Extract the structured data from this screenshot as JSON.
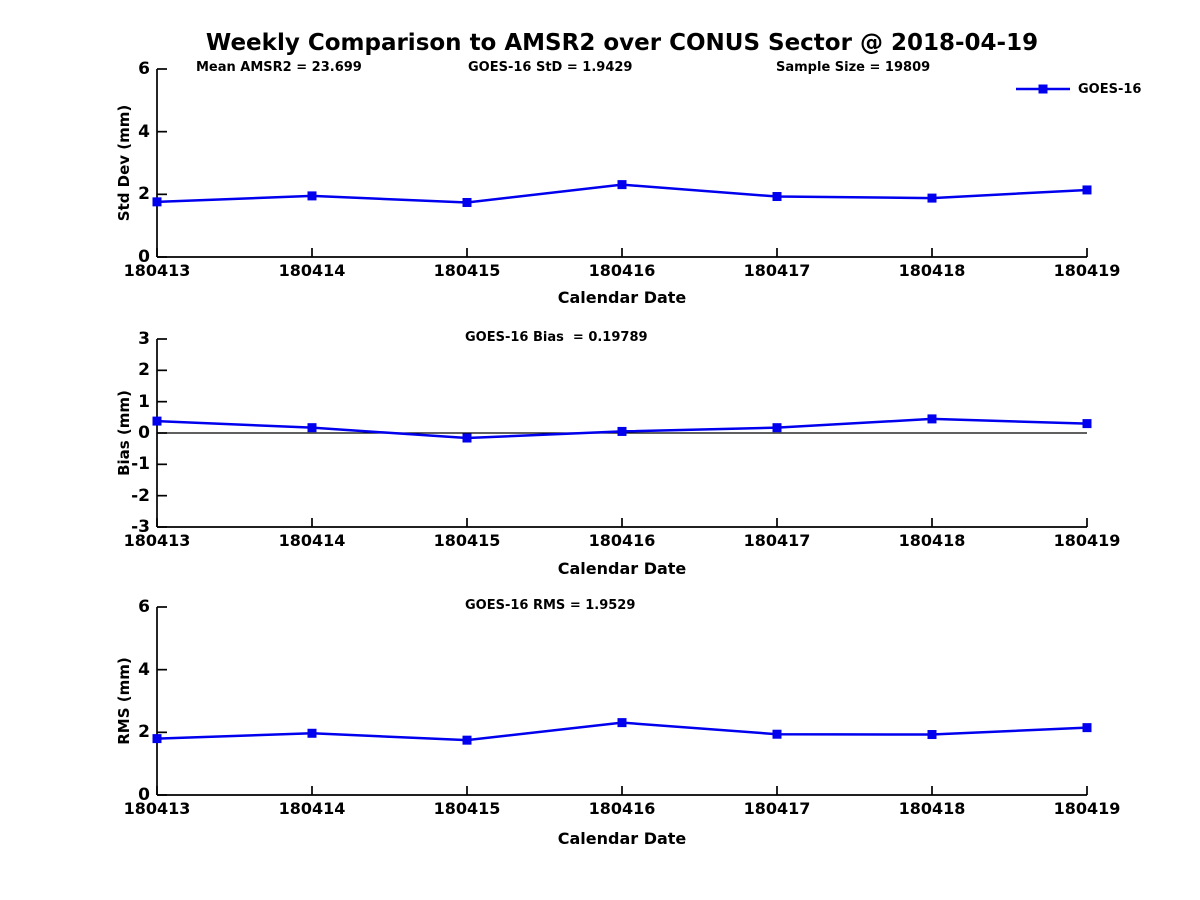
{
  "title": "Weekly Comparison to AMSR2 over CONUS Sector @ 2018-04-19",
  "annotations": {
    "mean_amsr2": "Mean AMSR2 = 23.699",
    "std": "GOES-16 StD = 1.9429",
    "sample_size": "Sample Size = 19809",
    "bias": "GOES-16 Bias  = 0.19789",
    "rms": "GOES-16 RMS = 1.9529"
  },
  "legend": {
    "label": "GOES-16",
    "line_color": "#0000ee",
    "marker": "square"
  },
  "colors": {
    "series": "#0000ee",
    "axis": "#000000",
    "zero_line": "#000000",
    "text": "#000000",
    "background": "#ffffff"
  },
  "chart_data": [
    {
      "type": "line",
      "name": "std-dev-vs-date",
      "categories": [
        "180413",
        "180414",
        "180415",
        "180416",
        "180417",
        "180418",
        "180419"
      ],
      "series": [
        {
          "name": "GOES-16",
          "values": [
            1.76,
            1.95,
            1.74,
            2.31,
            1.93,
            1.88,
            2.14
          ]
        }
      ],
      "ylabel": "Std Dev (mm)",
      "xlabel": "Calendar Date",
      "ylim": [
        0,
        6
      ],
      "yticks": [
        0,
        2,
        4,
        6
      ],
      "grid": false,
      "zero_line": false,
      "legend_position": "top-right",
      "marker": "square"
    },
    {
      "type": "line",
      "name": "bias-vs-date",
      "categories": [
        "180413",
        "180414",
        "180415",
        "180416",
        "180417",
        "180418",
        "180419"
      ],
      "series": [
        {
          "name": "GOES-16",
          "values": [
            0.38,
            0.17,
            -0.16,
            0.05,
            0.17,
            0.45,
            0.3
          ]
        }
      ],
      "ylabel": "Bias (mm)",
      "xlabel": "Calendar Date",
      "ylim": [
        -3,
        3
      ],
      "yticks": [
        -3,
        -2,
        -1,
        0,
        1,
        2,
        3
      ],
      "grid": false,
      "zero_line": true,
      "legend_position": "none",
      "marker": "square"
    },
    {
      "type": "line",
      "name": "rms-vs-date",
      "categories": [
        "180413",
        "180414",
        "180415",
        "180416",
        "180417",
        "180418",
        "180419"
      ],
      "series": [
        {
          "name": "GOES-16",
          "values": [
            1.8,
            1.97,
            1.75,
            2.31,
            1.94,
            1.93,
            2.15
          ]
        }
      ],
      "ylabel": "RMS (mm)",
      "xlabel": "Calendar Date",
      "ylim": [
        0,
        6
      ],
      "yticks": [
        0,
        2,
        4,
        6
      ],
      "grid": false,
      "zero_line": false,
      "legend_position": "none",
      "marker": "square"
    }
  ]
}
